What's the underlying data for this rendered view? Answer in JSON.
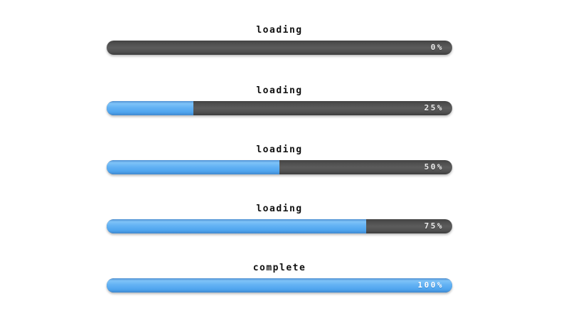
{
  "colors": {
    "background": "#ffffff",
    "track_gray": "#4f4f4f",
    "fill_blue": "#58acf1",
    "label_text": "#111111",
    "percent_text": "#ededed"
  },
  "bars": [
    {
      "label": "loading",
      "percent_label": "0%",
      "percent": 0
    },
    {
      "label": "loading",
      "percent_label": "25%",
      "percent": 25
    },
    {
      "label": "loading",
      "percent_label": "50%",
      "percent": 50
    },
    {
      "label": "loading",
      "percent_label": "75%",
      "percent": 75
    },
    {
      "label": "complete",
      "percent_label": "100%",
      "percent": 100
    }
  ],
  "layout": {
    "row_tops": [
      36,
      121,
      204,
      287,
      370
    ]
  }
}
